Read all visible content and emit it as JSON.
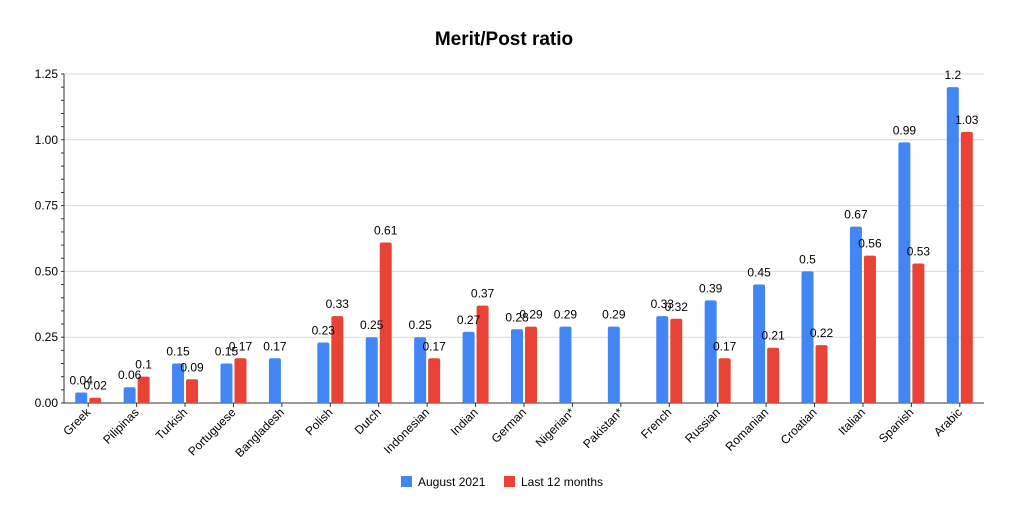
{
  "chart_data": {
    "type": "bar",
    "title": "Merit/Post ratio",
    "xlabel": "",
    "ylabel": "",
    "ylim": [
      0,
      1.25
    ],
    "yticks": [
      "0.00",
      "0.25",
      "0.50",
      "0.75",
      "1.00",
      "1.25"
    ],
    "ytick_values": [
      0,
      0.25,
      0.5,
      0.75,
      1.0,
      1.25
    ],
    "grid": true,
    "legend_position": "bottom",
    "categories": [
      "Greek",
      "Pilipinas",
      "Turkish",
      "Portuguese",
      "Bangladesh",
      "Polish",
      "Dutch",
      "Indonesian",
      "Indian",
      "German",
      "Nigerian*",
      "Pakistan*",
      "French",
      "Russian",
      "Romanian",
      "Croatian",
      "Italian",
      "Spanish",
      "Arabic"
    ],
    "series": [
      {
        "name": "August 2021",
        "color": "#4285F4",
        "values": [
          0.04,
          0.06,
          0.15,
          0.15,
          0.17,
          0.23,
          0.25,
          0.25,
          0.27,
          0.28,
          0.29,
          0.29,
          0.33,
          0.39,
          0.45,
          0.5,
          0.67,
          0.99,
          1.2
        ],
        "labels": [
          "0.04",
          "0.06",
          "0.15",
          "0.15",
          "0.17",
          "0.23",
          "0.25",
          "0.25",
          "0.27",
          "0.28",
          "0.29",
          "0.29",
          "0.33",
          "0.39",
          "0.45",
          "0.5",
          "0.67",
          "0.99",
          "1.2"
        ]
      },
      {
        "name": "Last 12 months",
        "color": "#EA4335",
        "values": [
          0.02,
          0.1,
          0.09,
          0.17,
          null,
          0.33,
          0.61,
          0.17,
          0.37,
          0.29,
          null,
          null,
          0.32,
          0.17,
          0.21,
          0.22,
          0.56,
          0.53,
          1.03
        ],
        "labels": [
          "0.02",
          "0.1",
          "0.09",
          "0.17",
          "",
          "0.33",
          "0.61",
          "0.17",
          "0.37",
          "0.29",
          "",
          "",
          "0.32",
          "0.17",
          "0.21",
          "0.22",
          "0.56",
          "0.53",
          "1.03"
        ]
      }
    ]
  }
}
